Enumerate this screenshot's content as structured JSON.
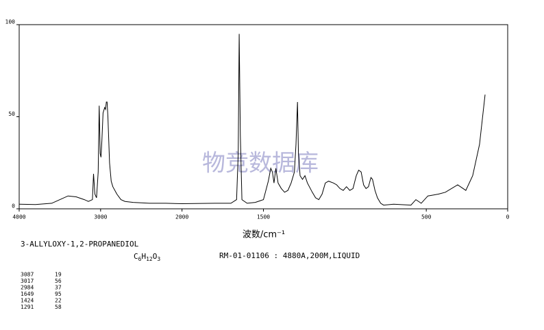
{
  "chart_data": {
    "type": "line",
    "x_label": "波数/cm⁻¹",
    "xlim": [
      4000,
      0
    ],
    "x_scale_break": 2000,
    "xticks": [
      4000,
      3000,
      2000,
      1500,
      500,
      0
    ],
    "ylim": [
      0,
      100
    ],
    "yticks": [
      0,
      50,
      100
    ],
    "color": "#000000",
    "x": [
      4000,
      3800,
      3600,
      3500,
      3400,
      3300,
      3200,
      3150,
      3100,
      3087,
      3070,
      3050,
      3030,
      3017,
      3005,
      2995,
      2984,
      2970,
      2950,
      2940,
      2930,
      2920,
      2910,
      2890,
      2870,
      2850,
      2800,
      2750,
      2700,
      2600,
      2400,
      2200,
      2000,
      1800,
      1700,
      1665,
      1655,
      1649,
      1642,
      1632,
      1600,
      1550,
      1500,
      1470,
      1455,
      1445,
      1435,
      1424,
      1410,
      1390,
      1370,
      1350,
      1330,
      1310,
      1300,
      1291,
      1285,
      1275,
      1260,
      1245,
      1230,
      1200,
      1180,
      1160,
      1140,
      1120,
      1100,
      1070,
      1050,
      1030,
      1010,
      990,
      970,
      950,
      930,
      915,
      900,
      885,
      870,
      855,
      840,
      830,
      815,
      800,
      780,
      762,
      700,
      594,
      564,
      531,
      490,
      425,
      383,
      307,
      257,
      215,
      173,
      139
    ],
    "values": [
      2.5,
      2.3,
      3,
      5,
      7,
      6.5,
      5,
      4,
      5,
      19,
      8,
      6,
      20,
      56,
      30,
      28,
      37,
      52,
      55,
      54,
      58,
      58,
      50,
      25,
      15,
      12,
      8,
      5,
      4,
      3.5,
      3,
      3,
      2.8,
      3,
      3,
      5,
      30,
      95,
      40,
      5,
      3,
      3.5,
      5,
      15,
      22,
      20,
      14,
      22,
      14,
      11,
      9,
      10,
      14,
      20,
      35,
      58,
      30,
      18,
      16,
      18,
      14,
      9,
      6,
      5,
      8,
      14,
      15,
      14,
      13,
      11,
      10,
      12,
      10,
      11,
      18,
      21,
      20,
      13,
      11,
      12,
      17,
      16,
      10,
      6,
      3,
      2,
      2.5,
      2,
      5,
      3,
      7,
      8,
      9,
      13,
      10,
      18,
      35,
      62
    ],
    "watermark": "物竞数据库",
    "compound": "3-ALLYLOXY-1,2-PROPANEDIOL",
    "formula": "C6H12O3",
    "sample": "RM-01-01106 : 4880A,200M,LIQUID",
    "peak_table": [
      [
        "3087",
        "19"
      ],
      [
        "3017",
        "56"
      ],
      [
        "2984",
        "37"
      ],
      [
        "1649",
        "95"
      ],
      [
        "1424",
        "22"
      ],
      [
        "1291",
        "58"
      ]
    ]
  }
}
